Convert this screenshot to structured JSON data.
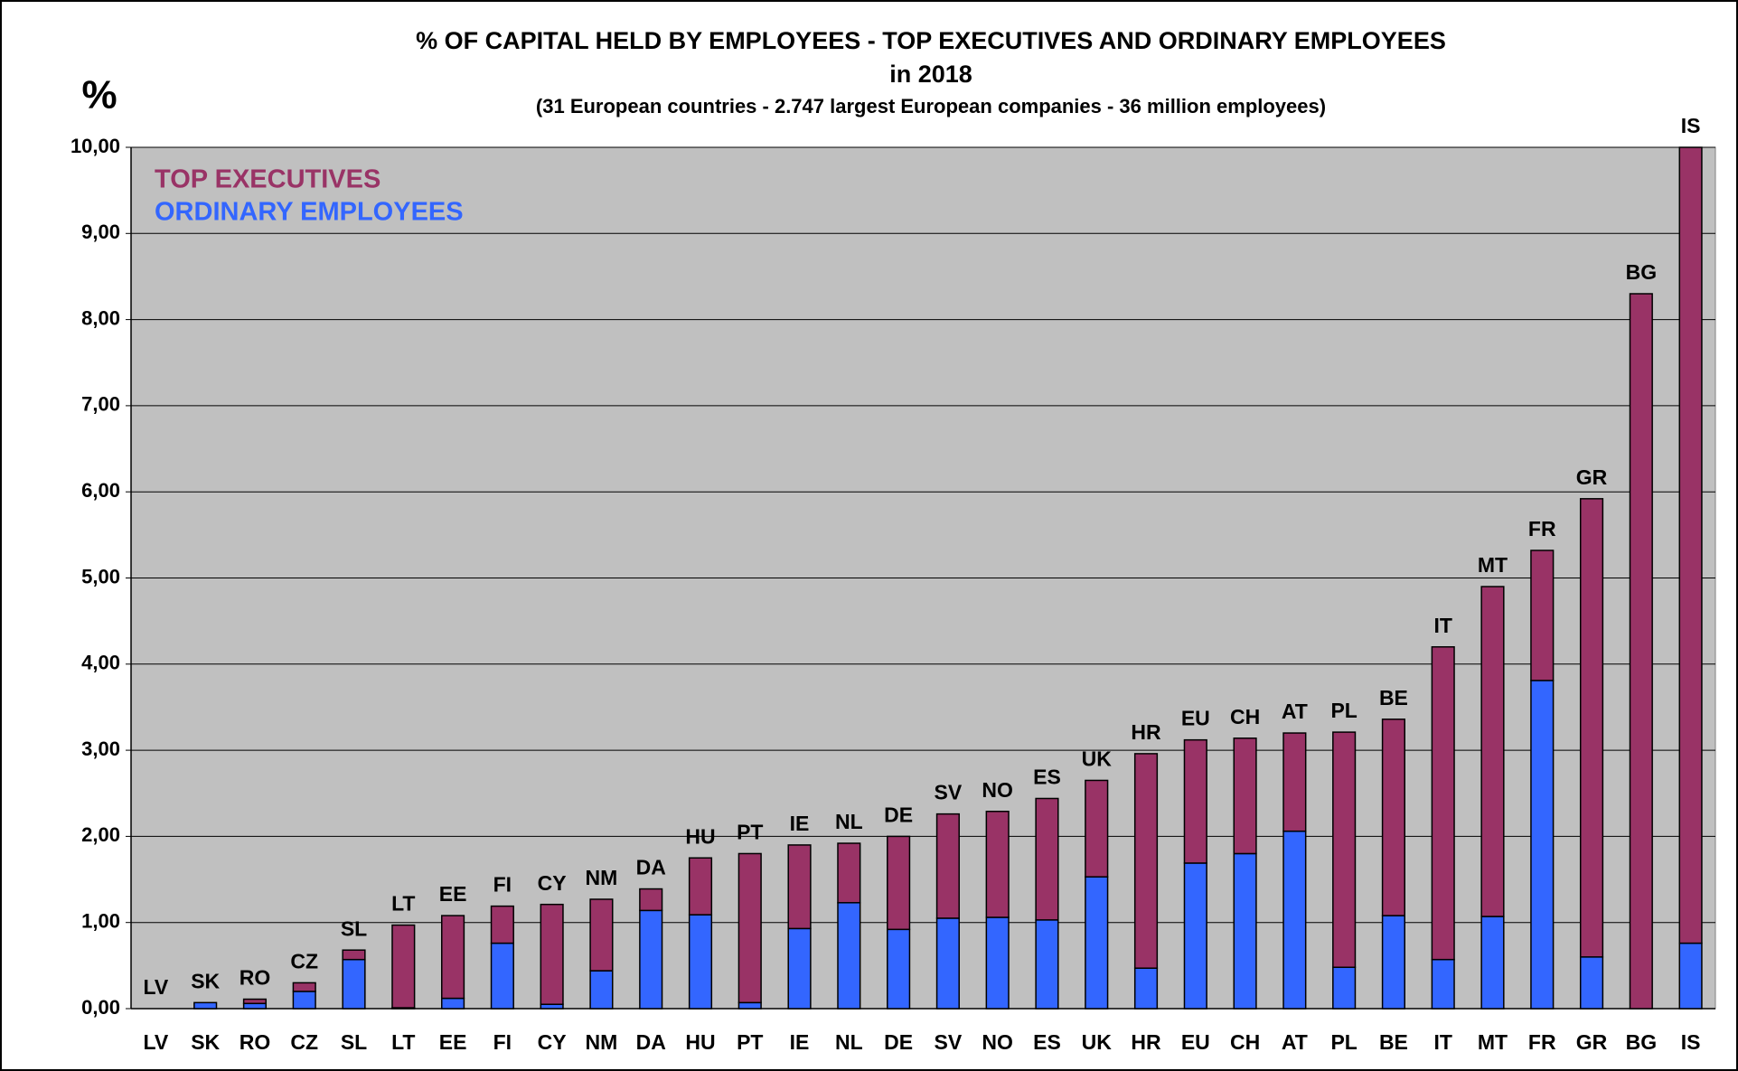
{
  "chart_data": {
    "type": "stacked_bar",
    "title": "% OF CAPITAL HELD BY EMPLOYEES - TOP EXECUTIVES AND ORDINARY EMPLOYEES",
    "title_line2": "in 2018",
    "subtitle": "(31 European countries - 2.747 largest European companies - 36 million employees)",
    "y_label": "%",
    "categories": [
      "LV",
      "SK",
      "RO",
      "CZ",
      "SL",
      "LT",
      "EE",
      "FI",
      "CY",
      "NM",
      "DA",
      "HU",
      "PT",
      "IE",
      "NL",
      "DE",
      "SV",
      "NO",
      "ES",
      "UK",
      "HR",
      "EU",
      "CH",
      "AT",
      "PL",
      "BE",
      "IT",
      "MT",
      "FR",
      "GR",
      "BG",
      "IS"
    ],
    "series": [
      {
        "name": "ORDINARY EMPLOYEES",
        "color": "#3366ff",
        "values": [
          0,
          0.07,
          0.06,
          0.2,
          0.57,
          0.01,
          0.12,
          0.76,
          0.05,
          0.44,
          1.14,
          1.09,
          0.07,
          0.93,
          1.23,
          0.92,
          1.05,
          1.06,
          1.03,
          1.53,
          0.47,
          1.69,
          1.8,
          2.06,
          0.48,
          1.08,
          0.57,
          1.07,
          3.81,
          0.6,
          0,
          0.76
        ]
      },
      {
        "name": "TOP EXECUTIVES",
        "color": "#993366",
        "values": [
          0,
          0,
          0.05,
          0.1,
          0.11,
          0.96,
          0.96,
          0.43,
          1.16,
          0.83,
          0.25,
          0.66,
          1.73,
          0.97,
          0.69,
          1.08,
          1.21,
          1.23,
          1.41,
          1.12,
          2.49,
          1.43,
          1.34,
          1.14,
          2.73,
          2.28,
          3.63,
          3.83,
          1.51,
          5.32,
          8.3,
          9.24
        ]
      }
    ],
    "ylim": [
      0,
      10
    ],
    "yticks": [
      {
        "value": 0,
        "label": "0,00"
      },
      {
        "value": 1,
        "label": "1,00"
      },
      {
        "value": 2,
        "label": "2,00"
      },
      {
        "value": 3,
        "label": "3,00"
      },
      {
        "value": 4,
        "label": "4,00"
      },
      {
        "value": 5,
        "label": "5,00"
      },
      {
        "value": 6,
        "label": "6,00"
      },
      {
        "value": 7,
        "label": "7,00"
      },
      {
        "value": 8,
        "label": "8,00"
      },
      {
        "value": 9,
        "label": "9,00"
      },
      {
        "value": 10,
        "label": "10,00"
      }
    ],
    "grid": true,
    "legend": "top-left",
    "background": "#c0c0c0"
  }
}
